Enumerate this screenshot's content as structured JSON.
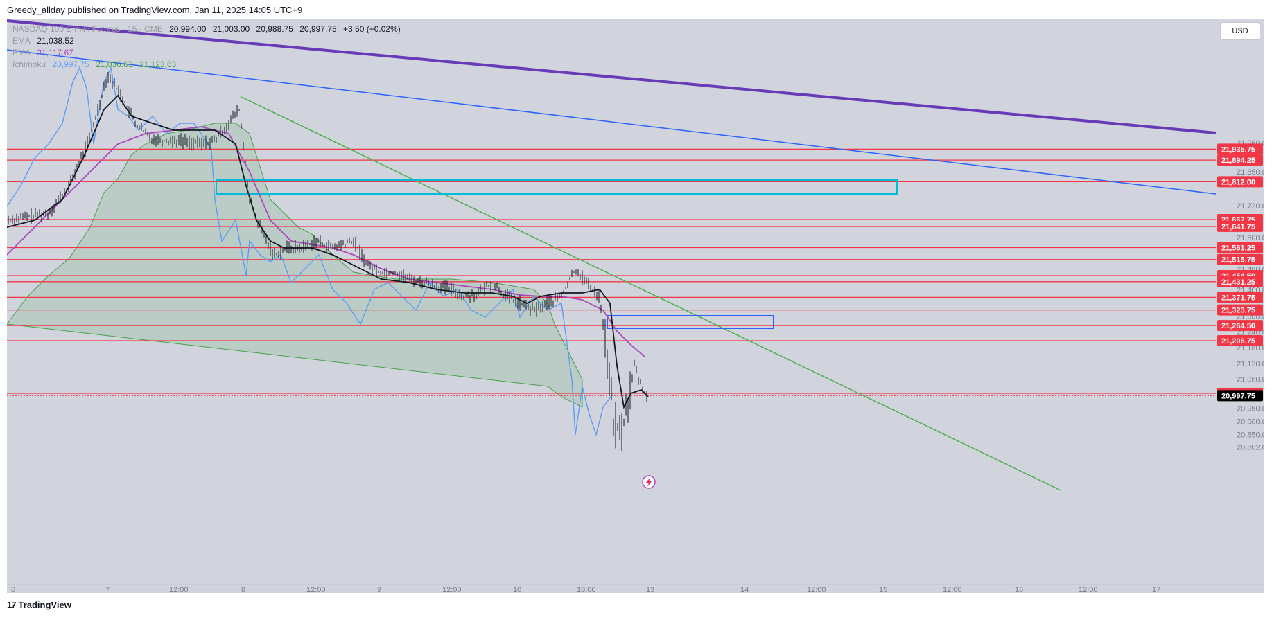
{
  "header": {
    "published": "Greedy_allday published on TradingView.com, Jan 11, 2025 14:05 UTC+9"
  },
  "legend": {
    "symbol": "NASDAQ 100 E-mini Futures · 15 · CME",
    "ohlc": {
      "o": "20,994.00",
      "h": "21,003.00",
      "l": "20,988.75",
      "c": "20,997.75",
      "chg": "+3.50 (+0.02%)"
    },
    "ema1_label": "EMA",
    "ema1_value": "21,038.52",
    "ema2_label": "EMA",
    "ema2_value": "21,117.67",
    "ichimoku_label": "Ichimoku",
    "ichimoku_values": [
      "20,997.75",
      "21,036.63",
      "21,123.63"
    ]
  },
  "currency_button": "USD",
  "brand": "TradingView",
  "colors": {
    "background": "#d1d4dc",
    "candle": "#131722",
    "level_line": "#f23645",
    "ema_fast": "#131722",
    "ema_slow": "#ab47bc",
    "ichimoku_lag": "#5b9cf6",
    "ichimoku_cloud": "#43a047",
    "trend_purple": "#673ab7",
    "trend_blue": "#2962ff",
    "trend_green": "#4caf50",
    "box_cyan": "#00bcd4",
    "box_blue": "#2962ff",
    "last_price": "#000000"
  },
  "chart_data": {
    "type": "line",
    "title": "NASDAQ 100 E-mini Futures, 15",
    "y_axis_ticks": [
      "21,960.00",
      "21,850.00",
      "21,720.00",
      "21,600.00",
      "21,480.00",
      "21,400.00",
      "21,300.00",
      "21,240.00",
      "21,180.00",
      "21,120.00",
      "21,060.00",
      "20,950.00",
      "20,900.00",
      "20,850.00",
      "20,802.00"
    ],
    "x_axis_ticks": [
      "6",
      "7",
      "12:00",
      "8",
      "12:00",
      "9",
      "12:00",
      "10",
      "18:00",
      "13",
      "14",
      "12:00",
      "15",
      "12:00",
      "16",
      "12:00",
      "17"
    ],
    "horizontal_levels": [
      21935.75,
      21894.25,
      21812.0,
      21667.75,
      21641.75,
      21561.25,
      21515.75,
      21454.5,
      21431.25,
      21371.75,
      21323.75,
      21264.5,
      21206.75,
      21006.5
    ],
    "horizontal_level_labels": [
      "21,935.75",
      "21,894.25",
      "21,812.00",
      "21,667.75",
      "21,641.75",
      "21,561.25",
      "21,515.75",
      "21,454.50",
      "21,431.25",
      "21,371.75",
      "21,323.75",
      "21,264.50",
      "21,206.75",
      "21,006.50"
    ],
    "last_price": 20997.75,
    "last_price_label": "20,997.75",
    "price_series": {
      "name": "Close",
      "x": [
        "6",
        "7",
        "12:00",
        "8",
        "12:00",
        "9",
        "12:00",
        "10",
        "18:00",
        "13"
      ],
      "values": [
        21500,
        21890,
        21730,
        21790,
        21390,
        21380,
        21310,
        21300,
        21370,
        20998
      ]
    }
  }
}
